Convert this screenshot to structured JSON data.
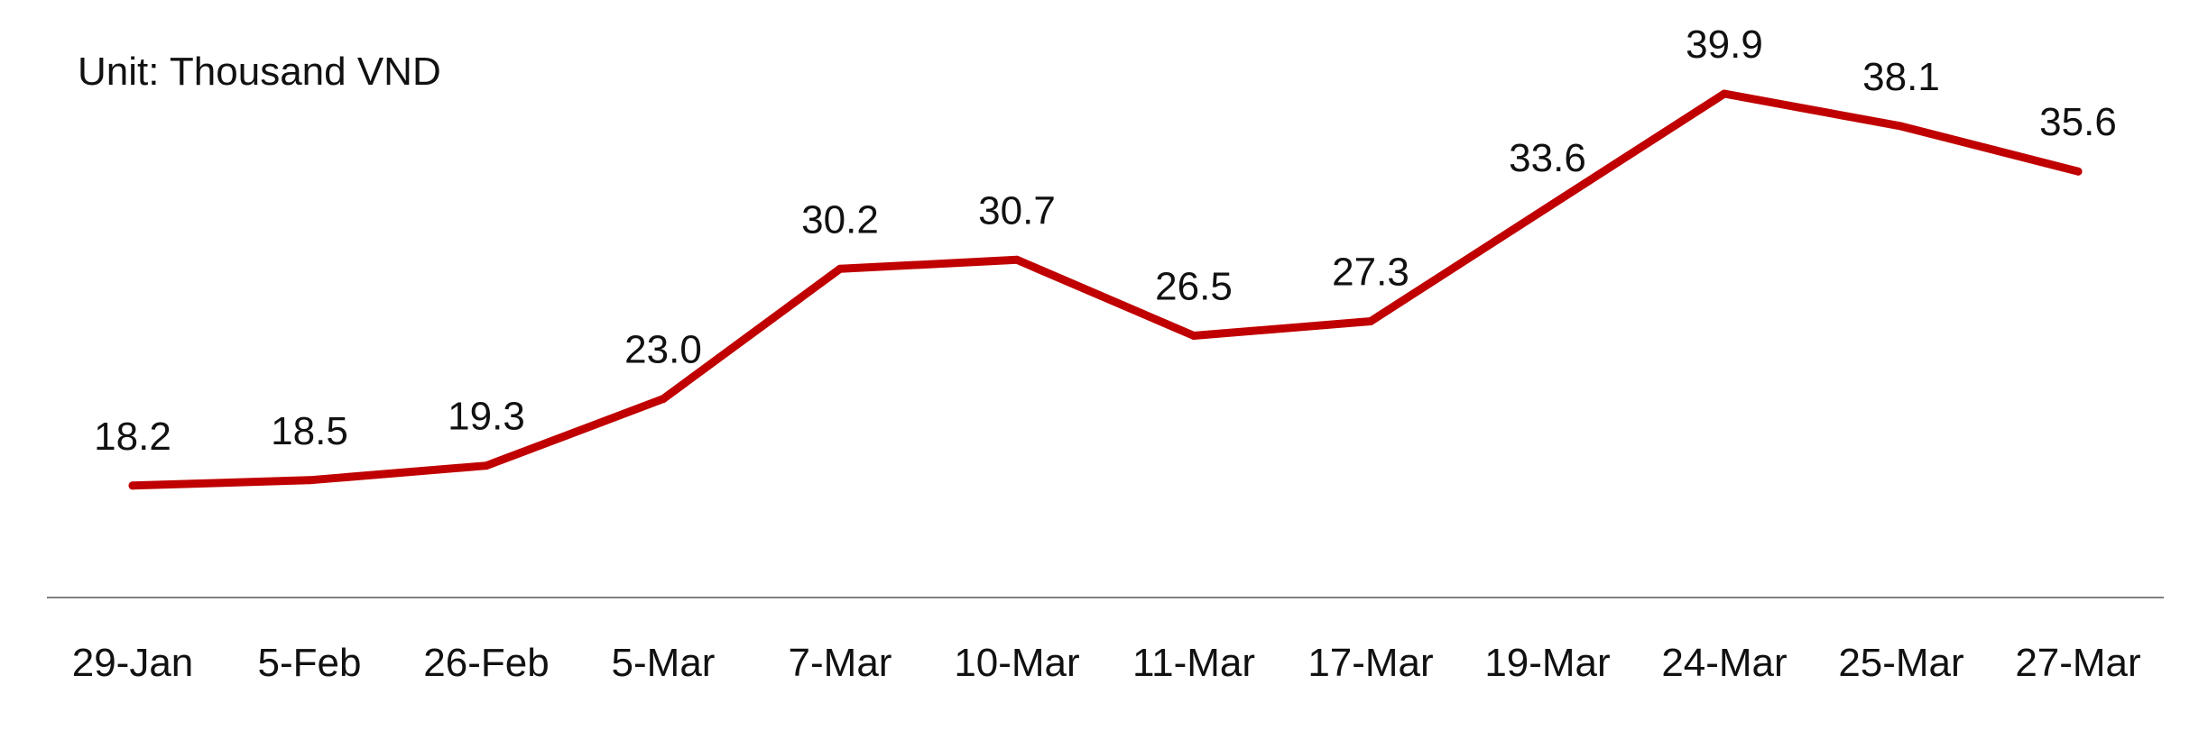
{
  "chart_data": {
    "type": "line",
    "annotation": "Unit: Thousand VND",
    "categories": [
      "29-Jan",
      "5-Feb",
      "26-Feb",
      "5-Mar",
      "7-Mar",
      "10-Mar",
      "11-Mar",
      "17-Mar",
      "19-Mar",
      "24-Mar",
      "25-Mar",
      "27-Mar"
    ],
    "series": [
      {
        "values": [
          18.2,
          18.5,
          19.3,
          23.0,
          30.2,
          30.7,
          26.5,
          27.3,
          33.6,
          39.9,
          38.1,
          35.6
        ]
      }
    ],
    "data_labels": [
      "18.2",
      "18.5",
      "19.3",
      "23.0",
      "30.2",
      "30.7",
      "26.5",
      "27.3",
      "33.6",
      "39.9",
      "38.1",
      "35.6"
    ],
    "ylim": [
      0,
      45
    ],
    "grid": false,
    "colors": {
      "line": "#C00000",
      "axis": "#808080"
    }
  }
}
